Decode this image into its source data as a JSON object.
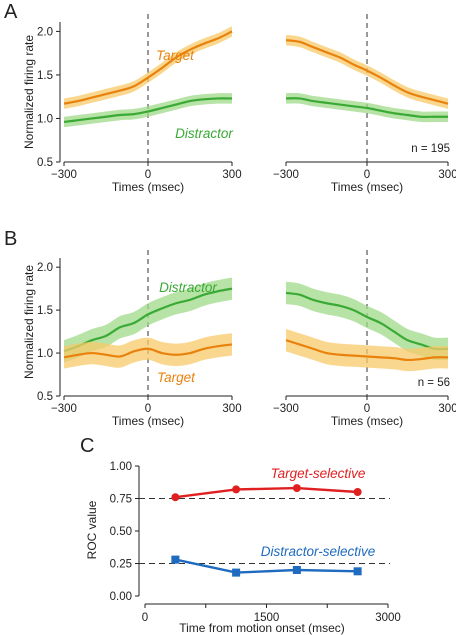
{
  "chart_data": [
    {
      "panel": "A",
      "type": "line",
      "ylabel": "Normalized firing rate",
      "ylim": [
        0.5,
        2.2
      ],
      "yticks": [
        "0.5",
        "1.0",
        "1.5",
        "2.0"
      ],
      "n_label": "n = 195",
      "subplots": [
        {
          "xlabel": "Times (msec)",
          "xlim": [
            -300,
            300
          ],
          "xticks": [
            "−300",
            "0",
            "300"
          ],
          "x": [
            -300,
            -250,
            -200,
            -150,
            -100,
            -50,
            0,
            50,
            100,
            150,
            200,
            250,
            300
          ],
          "series": [
            {
              "name": "Target",
              "color": "#e8820c",
              "band": "#f8c96a",
              "values": [
                1.17,
                1.2,
                1.24,
                1.28,
                1.32,
                1.37,
                1.47,
                1.58,
                1.7,
                1.79,
                1.86,
                1.92,
                2.0
              ]
            },
            {
              "name": "Distractor",
              "color": "#3aaa35",
              "band": "#9fd98a",
              "values": [
                0.96,
                0.98,
                1.0,
                1.02,
                1.04,
                1.05,
                1.08,
                1.12,
                1.16,
                1.2,
                1.22,
                1.23,
                1.23
              ]
            }
          ]
        },
        {
          "xlabel": "Times (msec)",
          "xlim": [
            -300,
            300
          ],
          "xticks": [
            "−300",
            "0",
            "300"
          ],
          "x": [
            -300,
            -250,
            -200,
            -150,
            -100,
            -50,
            0,
            50,
            100,
            150,
            200,
            250,
            300
          ],
          "series": [
            {
              "name": "Target",
              "color": "#e8820c",
              "band": "#f8c96a",
              "values": [
                1.9,
                1.88,
                1.82,
                1.76,
                1.7,
                1.62,
                1.55,
                1.47,
                1.38,
                1.3,
                1.25,
                1.21,
                1.17
              ]
            },
            {
              "name": "Distractor",
              "color": "#3aaa35",
              "band": "#9fd98a",
              "values": [
                1.23,
                1.23,
                1.2,
                1.18,
                1.16,
                1.14,
                1.12,
                1.09,
                1.06,
                1.04,
                1.02,
                1.02,
                1.02
              ]
            }
          ]
        }
      ]
    },
    {
      "panel": "B",
      "type": "line",
      "ylabel": "Normalized firing rate",
      "ylim": [
        0.5,
        2.2
      ],
      "yticks": [
        "0.5",
        "1.0",
        "1.5",
        "2.0"
      ],
      "n_label": "n = 56",
      "subplots": [
        {
          "xlabel": "Times (msec)",
          "xlim": [
            -300,
            300
          ],
          "xticks": [
            "−300",
            "0",
            "300"
          ],
          "x": [
            -300,
            -250,
            -200,
            -150,
            -100,
            -50,
            0,
            50,
            100,
            150,
            200,
            250,
            300
          ],
          "series": [
            {
              "name": "Distractor",
              "color": "#3aaa35",
              "band": "#9fd98a",
              "values": [
                1.02,
                1.08,
                1.15,
                1.2,
                1.3,
                1.35,
                1.45,
                1.52,
                1.58,
                1.62,
                1.68,
                1.72,
                1.75
              ]
            },
            {
              "name": "Target",
              "color": "#e8820c",
              "band": "#f8c96a",
              "values": [
                0.95,
                0.98,
                1.0,
                0.98,
                0.96,
                1.02,
                1.05,
                1.0,
                0.98,
                1.0,
                1.05,
                1.08,
                1.1
              ]
            }
          ]
        },
        {
          "xlabel": "Times (msec)",
          "xlim": [
            -300,
            300
          ],
          "xticks": [
            "−300",
            "0",
            "300"
          ],
          "x": [
            -300,
            -250,
            -200,
            -150,
            -100,
            -50,
            0,
            50,
            100,
            150,
            200,
            250,
            300
          ],
          "series": [
            {
              "name": "Distractor",
              "color": "#3aaa35",
              "band": "#9fd98a",
              "values": [
                1.7,
                1.68,
                1.62,
                1.58,
                1.55,
                1.5,
                1.42,
                1.35,
                1.25,
                1.15,
                1.1,
                1.05,
                1.05
              ]
            },
            {
              "name": "Target",
              "color": "#e8820c",
              "band": "#f8c96a",
              "values": [
                1.15,
                1.1,
                1.05,
                1.0,
                0.98,
                0.97,
                0.96,
                0.95,
                0.94,
                0.92,
                0.93,
                0.95,
                0.95
              ]
            }
          ]
        }
      ]
    },
    {
      "panel": "C",
      "type": "line",
      "xlabel": "Time from motion onset (msec)",
      "ylabel": "ROC value",
      "xlim": [
        0,
        3000
      ],
      "ylim": [
        0,
        1.0
      ],
      "xticks": [
        "0",
        "1500",
        "3000"
      ],
      "yticks": [
        "0.00",
        "0.25",
        "0.50",
        "0.75",
        "1.00"
      ],
      "reference_lines": [
        0.75,
        0.25
      ],
      "series": [
        {
          "name": "Target-selective",
          "color": "#e02020",
          "marker": "circle",
          "x": [
            375,
            1125,
            1875,
            2625
          ],
          "values": [
            0.76,
            0.82,
            0.83,
            0.8
          ]
        },
        {
          "name": "Distractor-selective",
          "color": "#1f6bbf",
          "marker": "square",
          "x": [
            375,
            1125,
            1875,
            2625
          ],
          "values": [
            0.28,
            0.18,
            0.2,
            0.19
          ]
        }
      ]
    }
  ]
}
